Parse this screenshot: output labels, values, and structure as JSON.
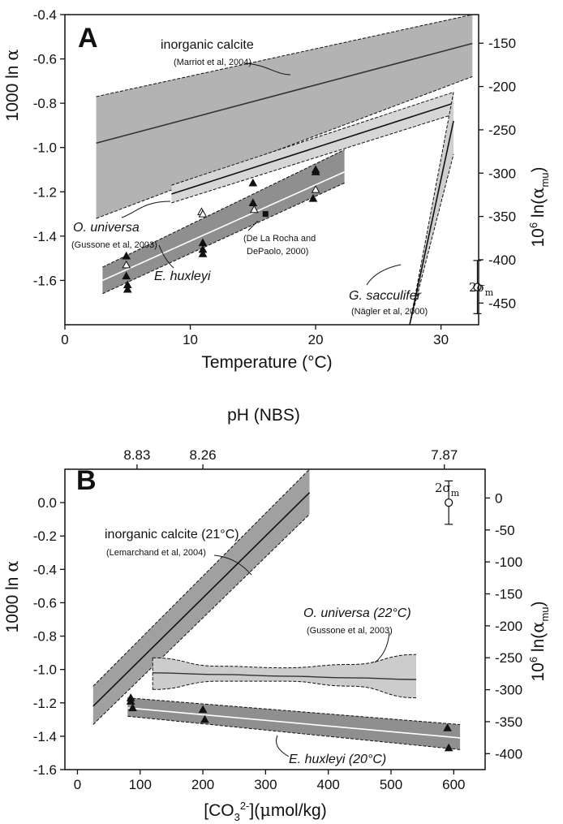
{
  "chart_data": [
    {
      "panel": "A",
      "type": "line",
      "xlabel": "Temperature (°C)",
      "ylabel": "1000 ln α",
      "y2label": "10⁶ ln(α_mu)",
      "xlim": [
        0,
        33
      ],
      "ylim": [
        -1.8,
        -0.4
      ],
      "y2lim": [
        -475,
        -117
      ],
      "xticks": [
        0,
        10,
        20,
        30
      ],
      "yticks": [
        -1.6,
        -1.4,
        -1.2,
        -1.0,
        -0.8,
        -0.6,
        -0.4
      ],
      "ytick_labels": [
        "-1.6",
        "-1.4",
        "-1.2",
        "-1.0",
        "-0.8",
        "-0.6",
        "-0.4"
      ],
      "y2ticks": [
        -450,
        -400,
        -350,
        -300,
        -250,
        -200,
        -150
      ],
      "bands": [
        {
          "name": "inorganic calcite",
          "ref": "(Marriot et al, 2004)",
          "shade": "#b3b3b3",
          "mid": "#333333",
          "x0": 2.5,
          "x1": 32.5,
          "c0": -0.98,
          "c1": -0.53,
          "lo0": -1.32,
          "lo1": -0.68,
          "hi0": -0.77,
          "hi1": -0.4
        },
        {
          "name": "O. universa",
          "ref": "(Gussone et al, 2003)",
          "shade": "#d6d6d6",
          "mid": "#111111",
          "x0": 8.5,
          "x1": 31,
          "c0": -1.21,
          "c1": -0.8,
          "lo0": -1.25,
          "lo1": -0.85,
          "hi0": -1.17,
          "hi1": -0.75
        },
        {
          "name": "E. huxleyi",
          "ref": "",
          "shade": "#8f8f8f",
          "mid": "#ffffff",
          "x0": 3,
          "x1": 22.3,
          "c0": -1.6,
          "c1": -1.11,
          "lo0": -1.66,
          "lo1": -1.16,
          "hi0": -1.54,
          "hi1": -1.01
        },
        {
          "name": "G. sacculifer",
          "ref": "(Nägler et al, 2000)",
          "shade": "#cfcfcf",
          "mid": "#111111",
          "x0": 27.5,
          "x1": 31,
          "c0": -1.8,
          "c1": -0.88,
          "lo0": -1.8,
          "lo1": -1.03,
          "hi0": -1.8,
          "hi1": -0.75
        }
      ],
      "markers": [
        {
          "shape": "triangle-filled",
          "x": [
            4.9,
            4.9,
            5,
            5,
            11,
            11,
            11,
            15,
            15,
            20,
            20,
            19.8
          ],
          "y": [
            -1.49,
            -1.58,
            -1.62,
            -1.64,
            -1.43,
            -1.46,
            -1.48,
            -1.16,
            -1.25,
            -1.1,
            -1.11,
            -1.23
          ]
        },
        {
          "shape": "triangle-open",
          "x": [
            4.9,
            10.9,
            11,
            15.1,
            20
          ],
          "y": [
            -1.53,
            -1.29,
            -1.3,
            -1.28,
            -1.19
          ]
        },
        {
          "shape": "square-filled",
          "x": [
            16
          ],
          "y": [
            -1.3
          ]
        }
      ],
      "ann_ref_derochao": "(De La Rocha and",
      "ann_ref_derochab": "DePaolo, 2000)",
      "errorbar": {
        "label": "2σm",
        "x": 32.9,
        "y": -1.63,
        "err": 0.12
      }
    },
    {
      "panel": "B",
      "type": "line",
      "xlabel": "[CO3 2-](μmol/kg)",
      "x2label": "pH (NBS)",
      "ylabel": "1000 ln α",
      "y2label": "10⁶ ln(α_mu)",
      "xlim": [
        -20,
        650
      ],
      "ylim": [
        -1.6,
        0.2
      ],
      "y2lim": [
        -425,
        45
      ],
      "xticks": [
        0,
        100,
        200,
        300,
        400,
        500,
        600
      ],
      "yticks": [
        -1.6,
        -1.4,
        -1.2,
        -1.0,
        -0.8,
        -0.6,
        -0.4,
        -0.2,
        0.0
      ],
      "ytick_labels": [
        "-1.6",
        "-1.4",
        "-1.2",
        "-1.0",
        "-0.8",
        "-0.6",
        "-0.4",
        "-0.2",
        "0.0"
      ],
      "y2ticks": [
        -400,
        -350,
        -300,
        -250,
        -200,
        -150,
        -100,
        -50,
        0
      ],
      "top_ticks": [
        {
          "x": 95,
          "label": "8.83"
        },
        {
          "x": 200,
          "label": "8.26"
        },
        {
          "x": 585,
          "label": "7.87"
        }
      ],
      "bands": [
        {
          "name": "inorganic calcite (21°C)",
          "ref": "(Lemarchand et al, 2004)",
          "shade": "#a0a0a0",
          "mid": "#111111",
          "x0": 25,
          "x1": 370,
          "c0": -1.22,
          "c1": 0.06,
          "lo0": -1.33,
          "lo1": -0.07,
          "hi0": -1.1,
          "hi1": 0.2
        },
        {
          "name": "E. huxleyi (20°C)",
          "ref": "",
          "shade": "#8f8f8f",
          "mid": "#ffffff",
          "x0": 80,
          "x1": 610,
          "c0": -1.23,
          "c1": -1.41,
          "lo0": -1.28,
          "lo1": -1.48,
          "hi0": -1.17,
          "hi1": -1.33
        }
      ],
      "ouniversa_band": {
        "name": "O. universa (22°C)",
        "ref": "(Gussone et al, 2003)",
        "shade": "#cccccc",
        "mid": "#333333",
        "x0": 120,
        "x1": 540,
        "x": [
          120,
          225,
          330,
          435,
          540
        ],
        "center": [
          -1.02,
          -1.03,
          -1.04,
          -1.05,
          -1.06
        ],
        "lower": [
          -1.12,
          -1.07,
          -1.07,
          -1.1,
          -1.17
        ],
        "upper": [
          -0.93,
          -0.98,
          -0.99,
          -0.97,
          -0.91
        ]
      },
      "markers": [
        {
          "shape": "triangle-filled",
          "x": [
            85,
            85,
            88,
            200,
            203,
            590,
            592
          ],
          "y": [
            -1.17,
            -1.19,
            -1.23,
            -1.24,
            -1.3,
            -1.35,
            -1.47
          ]
        }
      ],
      "errorbar": {
        "label": "2σm",
        "x": 592,
        "y": 0.0,
        "err": 0.13
      }
    }
  ]
}
